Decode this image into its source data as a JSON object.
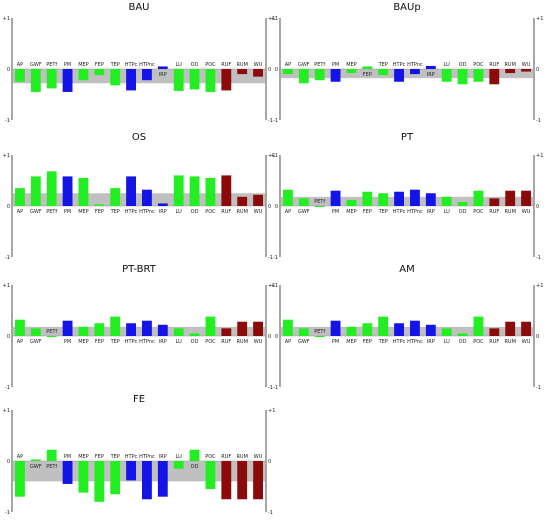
{
  "figure": {
    "colors": {
      "green": "#22ee22",
      "blue": "#1414e6",
      "darkred": "#8b0a0a",
      "band": "#c0c0c0",
      "axis": "#222222"
    }
  },
  "chart_data": [
    {
      "type": "bar",
      "title": "BAU",
      "categories": [
        "AP",
        "GWF",
        "PETf",
        "PM",
        "MEP",
        "FEP",
        "TEP",
        "HTPc",
        "HTPnc",
        "IRP",
        "LU",
        "OD",
        "POC",
        "RUF",
        "RUM",
        "WU"
      ],
      "values": [
        -0.25,
        -0.45,
        -0.38,
        -0.45,
        -0.22,
        -0.12,
        -0.32,
        -0.42,
        -0.22,
        0.05,
        -0.43,
        -0.4,
        -0.45,
        -0.42,
        -0.1,
        -0.15
      ],
      "band": [
        -0.28,
        0.0
      ],
      "series_colors": [
        "green",
        "green",
        "green",
        "blue",
        "green",
        "green",
        "green",
        "blue",
        "blue",
        "blue",
        "green",
        "green",
        "green",
        "darkred",
        "darkred",
        "darkred"
      ],
      "yticks": [
        "+1",
        "0",
        "-1"
      ],
      "ylim": [
        -1,
        1
      ]
    },
    {
      "type": "bar",
      "title": "BAUp",
      "categories": [
        "AP",
        "GWF",
        "PETf",
        "PM",
        "MEP",
        "FEP",
        "TEP",
        "HTPc",
        "HTPnc",
        "IRP",
        "LU",
        "OD",
        "POC",
        "RUF",
        "RUM",
        "WU"
      ],
      "values": [
        -0.1,
        -0.28,
        -0.22,
        -0.25,
        -0.08,
        0.05,
        -0.12,
        -0.25,
        -0.1,
        0.06,
        -0.25,
        -0.3,
        -0.25,
        -0.3,
        -0.08,
        -0.05
      ],
      "band": [
        -0.18,
        0.0
      ],
      "series_colors": [
        "green",
        "green",
        "green",
        "blue",
        "green",
        "green",
        "green",
        "blue",
        "blue",
        "blue",
        "green",
        "green",
        "green",
        "darkred",
        "darkred",
        "darkred"
      ],
      "yticks": [
        "+1",
        "0",
        "-1"
      ],
      "ylim": [
        -1,
        1
      ]
    },
    {
      "type": "bar",
      "title": "OS",
      "categories": [
        "AP",
        "GWF",
        "PETf",
        "PM",
        "MEP",
        "FEP",
        "TEP",
        "HTPc",
        "HTPnc",
        "IRP",
        "LU",
        "OD",
        "POC",
        "RUF",
        "RUM",
        "WU"
      ],
      "values": [
        0.35,
        0.58,
        0.68,
        0.58,
        0.55,
        0.03,
        0.35,
        0.58,
        0.32,
        0.05,
        0.6,
        0.58,
        0.55,
        0.6,
        0.18,
        0.22
      ],
      "band": [
        0.0,
        0.25
      ],
      "series_colors": [
        "green",
        "green",
        "green",
        "blue",
        "green",
        "green",
        "green",
        "blue",
        "blue",
        "blue",
        "green",
        "green",
        "green",
        "darkred",
        "darkred",
        "darkred"
      ],
      "yticks": [
        "+1",
        "0",
        "-1"
      ],
      "ylim": [
        -1,
        1
      ]
    },
    {
      "type": "bar",
      "title": "PT",
      "categories": [
        "AP",
        "GWF",
        "PETf",
        "PM",
        "MEP",
        "FEP",
        "TEP",
        "HTPc",
        "HTPnc",
        "IRP",
        "LU",
        "OD",
        "POC",
        "RUF",
        "RUM",
        "WU"
      ],
      "values": [
        0.32,
        0.15,
        -0.02,
        0.3,
        0.12,
        0.28,
        0.25,
        0.28,
        0.32,
        0.25,
        0.18,
        0.08,
        0.3,
        0.15,
        0.3,
        0.3
      ],
      "band": [
        0.0,
        0.18
      ],
      "series_colors": [
        "green",
        "green",
        "green",
        "blue",
        "green",
        "green",
        "green",
        "blue",
        "blue",
        "blue",
        "green",
        "green",
        "green",
        "darkred",
        "darkred",
        "darkred"
      ],
      "yticks": [
        "+1",
        "0",
        "-1"
      ],
      "ylim": [
        -1,
        1
      ]
    },
    {
      "type": "bar",
      "title": "PT-BRT",
      "categories": [
        "AP",
        "GWF",
        "PETf",
        "PM",
        "MEP",
        "FEP",
        "TEP",
        "HTPc",
        "HTPnc",
        "IRP",
        "LU",
        "OD",
        "POC",
        "RUF",
        "RUM",
        "WU"
      ],
      "values": [
        0.32,
        0.15,
        -0.02,
        0.3,
        0.18,
        0.25,
        0.38,
        0.25,
        0.3,
        0.22,
        0.15,
        0.05,
        0.38,
        0.15,
        0.28,
        0.28
      ],
      "band": [
        0.0,
        0.18
      ],
      "series_colors": [
        "green",
        "green",
        "green",
        "blue",
        "green",
        "green",
        "green",
        "blue",
        "blue",
        "blue",
        "green",
        "green",
        "green",
        "darkred",
        "darkred",
        "darkred"
      ],
      "yticks": [
        "+1",
        "0",
        "-1"
      ],
      "ylim": [
        -1,
        1
      ]
    },
    {
      "type": "bar",
      "title": "AM",
      "categories": [
        "AP",
        "GWF",
        "PETf",
        "PM",
        "MEP",
        "FEP",
        "TEP",
        "HTPc",
        "HTPnc",
        "IRP",
        "LU",
        "OD",
        "POC",
        "RUF",
        "RUM",
        "WU"
      ],
      "values": [
        0.32,
        0.15,
        -0.02,
        0.3,
        0.18,
        0.25,
        0.38,
        0.25,
        0.3,
        0.22,
        0.15,
        0.05,
        0.38,
        0.15,
        0.28,
        0.28
      ],
      "band": [
        0.0,
        0.18
      ],
      "series_colors": [
        "green",
        "green",
        "green",
        "blue",
        "green",
        "green",
        "green",
        "blue",
        "blue",
        "blue",
        "green",
        "green",
        "green",
        "darkred",
        "darkred",
        "darkred"
      ],
      "yticks": [
        "+1",
        "0",
        "-1"
      ],
      "ylim": [
        -1,
        1
      ]
    },
    {
      "type": "bar",
      "title": "FE",
      "categories": [
        "AP",
        "GWF",
        "PETf",
        "PM",
        "MEP",
        "FEP",
        "TEP",
        "HTPc",
        "HTPnc",
        "IRP",
        "LU",
        "OD",
        "POC",
        "RUF",
        "RUM",
        "WU"
      ],
      "values": [
        -0.7,
        0.03,
        0.22,
        -0.45,
        -0.62,
        -0.8,
        -0.65,
        -0.38,
        -0.75,
        -0.7,
        -0.15,
        0.22,
        -0.55,
        -0.75,
        -0.75,
        -0.75
      ],
      "band": [
        -0.4,
        0.0
      ],
      "series_colors": [
        "green",
        "green",
        "green",
        "blue",
        "green",
        "green",
        "green",
        "blue",
        "blue",
        "blue",
        "green",
        "green",
        "green",
        "darkred",
        "darkred",
        "darkred"
      ],
      "yticks": [
        "+1",
        "0",
        "-1"
      ],
      "ylim": [
        -1,
        1
      ]
    }
  ]
}
